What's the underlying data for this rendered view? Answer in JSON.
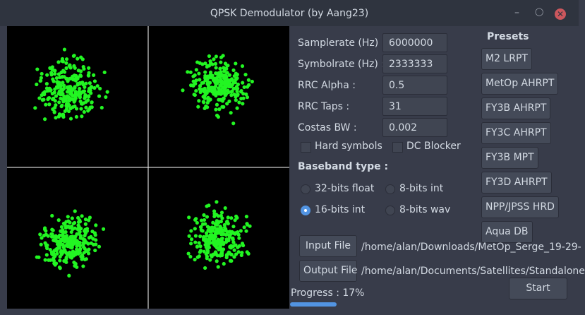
{
  "window": {
    "title": "QPSK Demodulator (by Aang23)"
  },
  "settings": {
    "rows": [
      {
        "label": "Samplerate (Hz) :",
        "value": "6000000"
      },
      {
        "label": "Symbolrate (Hz) :",
        "value": "2333333"
      },
      {
        "label": "RRC Alpha :",
        "value": "0.5"
      },
      {
        "label": "RRC Taps :",
        "value": "31"
      },
      {
        "label": "Costas BW :",
        "value": "0.002"
      }
    ],
    "checkboxes": [
      "Hard symbols",
      "DC Blocker"
    ]
  },
  "baseband": {
    "title": "Baseband type :",
    "options": [
      "32-bits float",
      "8-bits int",
      "16-bits int",
      "8-bits wav"
    ],
    "selected": "16-bits int"
  },
  "presets": {
    "title": "Presets",
    "buttons": [
      "M2 LRPT",
      "MetOp AHRPT",
      "FY3B AHRPT",
      "FY3C AHRPT",
      "FY3B MPT",
      "FY3D AHRPT",
      "NPP/JPSS HRD",
      "Aqua DB"
    ]
  },
  "files": {
    "input_button": "Input File",
    "input_path": "/home/alan/Downloads/MetOp_Serge_19-29-",
    "output_button": "Output File",
    "output_path": "/home/alan/Documents/Satellites/Standalone"
  },
  "progress": {
    "label": "Progress : 17%",
    "value": 17
  },
  "start_button": "Start"
}
